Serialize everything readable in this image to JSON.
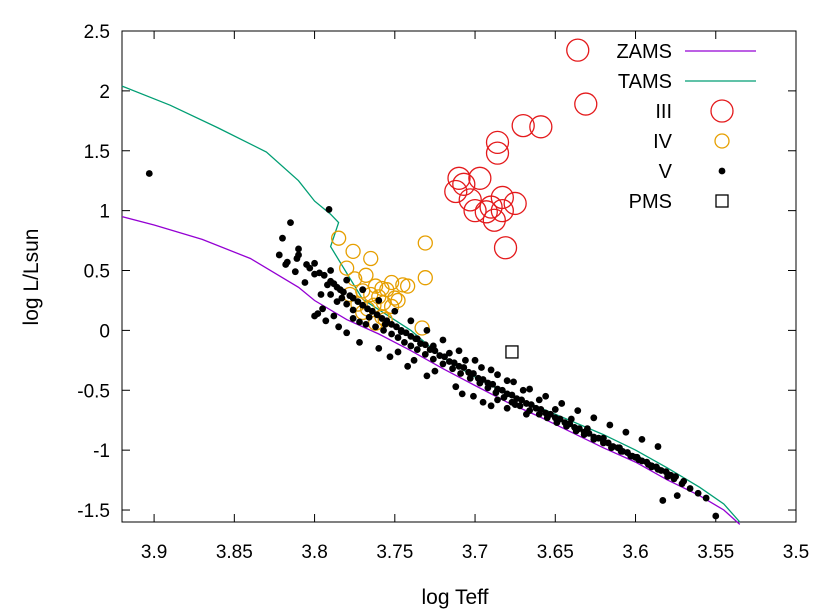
{
  "chart_data": {
    "type": "scatter",
    "xlabel": "log Teff",
    "ylabel": "log L/Lsun",
    "xlim": [
      3.92,
      3.5
    ],
    "ylim": [
      -1.6,
      2.5
    ],
    "x_reversed": true,
    "grid": false,
    "legend_position": "top-right",
    "x_ticks": [
      "3.9",
      "3.85",
      "3.8",
      "3.75",
      "3.7",
      "3.65",
      "3.6",
      "3.55",
      "3.5"
    ],
    "x_tick_values": [
      3.9,
      3.85,
      3.8,
      3.75,
      3.7,
      3.65,
      3.6,
      3.55,
      3.5
    ],
    "y_ticks": [
      "2.5",
      "2",
      "1.5",
      "1",
      "0.5",
      "0",
      "-0.5",
      "-1",
      "-1.5"
    ],
    "y_tick_values": [
      2.5,
      2,
      1.5,
      1,
      0.5,
      0,
      -0.5,
      -1,
      -1.5
    ],
    "series": [
      {
        "name": "ZAMS",
        "kind": "line",
        "color": "#9400d3",
        "x": [
          3.92,
          3.9,
          3.87,
          3.84,
          3.81,
          3.8,
          3.78,
          3.76,
          3.74,
          3.72,
          3.7,
          3.68,
          3.66,
          3.64,
          3.62,
          3.6,
          3.58,
          3.56,
          3.545,
          3.535
        ],
        "y": [
          0.95,
          0.88,
          0.76,
          0.6,
          0.36,
          0.25,
          0.09,
          -0.03,
          -0.17,
          -0.32,
          -0.46,
          -0.6,
          -0.72,
          -0.85,
          -0.98,
          -1.1,
          -1.25,
          -1.38,
          -1.5,
          -1.62
        ]
      },
      {
        "name": "TAMS",
        "kind": "line",
        "color": "#009e73",
        "x": [
          3.92,
          3.89,
          3.86,
          3.83,
          3.81,
          3.8,
          3.79,
          3.785,
          3.79,
          3.77,
          3.74,
          3.72,
          3.7,
          3.68,
          3.65,
          3.62,
          3.6,
          3.58,
          3.56,
          3.545,
          3.535
        ],
        "y": [
          2.04,
          1.88,
          1.69,
          1.49,
          1.25,
          1.08,
          0.97,
          0.9,
          0.7,
          0.26,
          0.0,
          -0.23,
          -0.39,
          -0.53,
          -0.7,
          -0.87,
          -1.0,
          -1.15,
          -1.31,
          -1.45,
          -1.6
        ]
      },
      {
        "name": "III",
        "kind": "points",
        "marker": "circle-large",
        "color": "#e41a1c",
        "x": [
          3.636,
          3.631,
          3.67,
          3.659,
          3.686,
          3.686,
          3.71,
          3.707,
          3.697,
          3.712,
          3.7,
          3.693,
          3.683,
          3.675,
          3.703,
          3.69,
          3.683,
          3.688,
          3.681
        ],
        "y": [
          2.34,
          1.89,
          1.71,
          1.7,
          1.57,
          1.48,
          1.27,
          1.22,
          1.27,
          1.16,
          1.0,
          0.99,
          1.0,
          1.06,
          1.09,
          1.03,
          1.11,
          0.92,
          0.69
        ]
      },
      {
        "name": "IV",
        "kind": "points",
        "marker": "circle",
        "color": "#e69f00",
        "x": [
          3.731,
          3.731,
          3.785,
          3.776,
          3.765,
          3.78,
          3.768,
          3.775,
          3.752,
          3.745,
          3.762,
          3.758,
          3.755,
          3.77,
          3.765,
          3.76,
          3.75,
          3.748,
          3.757,
          3.773,
          3.763,
          3.752,
          3.778,
          3.767,
          3.742,
          3.758,
          3.756,
          3.733,
          3.77,
          3.762
        ],
        "y": [
          0.73,
          0.44,
          0.77,
          0.66,
          0.6,
          0.52,
          0.46,
          0.43,
          0.4,
          0.38,
          0.37,
          0.35,
          0.34,
          0.33,
          0.3,
          0.28,
          0.27,
          0.25,
          0.23,
          0.22,
          0.21,
          0.2,
          0.3,
          0.18,
          0.37,
          0.11,
          0.09,
          0.02,
          0.15,
          0.06
        ]
      },
      {
        "name": "V",
        "kind": "points",
        "marker": "dot",
        "color": "#000000",
        "x": [
          3.903,
          3.791,
          3.815,
          3.82,
          3.818,
          3.811,
          3.805,
          3.8,
          3.792,
          3.786,
          3.79,
          3.783,
          3.78,
          3.795,
          3.798,
          3.788,
          3.776,
          3.772,
          3.768,
          3.762,
          3.757,
          3.752,
          3.748,
          3.744,
          3.74,
          3.736,
          3.731,
          3.726,
          3.72,
          3.714,
          3.709,
          3.703,
          3.697,
          3.692,
          3.687,
          3.682,
          3.677,
          3.672,
          3.666,
          3.66,
          3.655,
          3.649,
          3.643,
          3.637,
          3.632,
          3.626,
          3.62,
          3.615,
          3.609,
          3.603,
          3.598,
          3.592,
          3.586,
          3.58,
          3.576,
          3.571,
          3.566,
          3.561,
          3.556,
          3.55,
          3.81,
          3.803,
          3.797,
          3.79,
          3.784,
          3.778,
          3.773,
          3.767,
          3.761,
          3.755,
          3.749,
          3.743,
          3.737,
          3.731,
          3.725,
          3.719,
          3.713,
          3.707,
          3.701,
          3.695,
          3.689,
          3.683,
          3.677,
          3.671,
          3.665,
          3.659,
          3.653,
          3.647,
          3.641,
          3.635,
          3.629,
          3.623,
          3.617,
          3.611,
          3.605,
          3.599,
          3.593,
          3.587,
          3.581,
          3.575,
          3.57,
          3.79,
          3.78,
          3.77,
          3.76,
          3.75,
          3.74,
          3.73,
          3.72,
          3.71,
          3.7,
          3.69,
          3.68,
          3.67,
          3.66,
          3.65,
          3.64,
          3.63,
          3.62,
          3.61,
          3.6,
          3.59,
          3.58,
          3.8,
          3.794,
          3.788,
          3.782,
          3.776,
          3.77,
          3.764,
          3.758,
          3.752,
          3.746,
          3.74,
          3.734,
          3.728,
          3.722,
          3.716,
          3.71,
          3.704,
          3.698,
          3.692,
          3.686,
          3.68,
          3.674,
          3.668,
          3.662,
          3.656,
          3.65,
          3.644,
          3.638,
          3.632,
          3.626,
          3.62,
          3.614,
          3.608,
          3.602,
          3.596,
          3.59,
          3.584,
          3.578,
          3.806,
          3.796,
          3.786,
          3.776,
          3.766,
          3.756,
          3.746,
          3.736,
          3.726,
          3.716,
          3.706,
          3.696,
          3.686,
          3.676,
          3.666,
          3.656,
          3.646,
          3.636,
          3.626,
          3.616,
          3.606,
          3.596,
          3.586,
          3.583,
          3.574,
          3.701,
          3.695,
          3.69,
          3.686,
          3.712,
          3.708,
          3.68,
          3.675,
          3.668,
          3.725,
          3.73,
          3.738,
          3.742,
          3.748,
          3.753,
          3.76,
          3.772,
          3.78,
          3.785,
          3.793,
          3.8,
          3.812,
          3.817,
          3.822,
          3.81
        ],
        "y": [
          1.31,
          1.01,
          0.9,
          0.77,
          0.55,
          0.6,
          0.55,
          0.47,
          0.38,
          0.36,
          0.3,
          0.27,
          0.22,
          0.18,
          0.14,
          0.12,
          0.1,
          0.07,
          0.05,
          0.03,
          0.0,
          -0.03,
          -0.06,
          -0.1,
          -0.13,
          -0.16,
          -0.2,
          -0.24,
          -0.28,
          -0.32,
          -0.36,
          -0.4,
          -0.44,
          -0.48,
          -0.52,
          -0.56,
          -0.6,
          -0.63,
          -0.67,
          -0.7,
          -0.73,
          -0.77,
          -0.8,
          -0.84,
          -0.87,
          -0.91,
          -0.94,
          -0.98,
          -1.01,
          -1.05,
          -1.08,
          -1.12,
          -1.16,
          -1.2,
          -1.24,
          -1.28,
          -1.32,
          -1.36,
          -1.4,
          -1.55,
          0.63,
          0.52,
          0.48,
          0.41,
          0.34,
          0.29,
          0.24,
          0.18,
          0.13,
          0.08,
          0.03,
          -0.02,
          -0.07,
          -0.12,
          -0.17,
          -0.22,
          -0.27,
          -0.31,
          -0.36,
          -0.41,
          -0.45,
          -0.5,
          -0.54,
          -0.58,
          -0.62,
          -0.66,
          -0.7,
          -0.74,
          -0.78,
          -0.82,
          -0.86,
          -0.9,
          -0.94,
          -0.98,
          -1.02,
          -1.06,
          -1.1,
          -1.14,
          -1.18,
          -1.22,
          -1.26,
          0.5,
          0.42,
          0.34,
          0.25,
          0.16,
          0.08,
          0.0,
          -0.08,
          -0.17,
          -0.25,
          -0.33,
          -0.42,
          -0.5,
          -0.58,
          -0.66,
          -0.74,
          -0.82,
          -0.9,
          -0.98,
          -1.06,
          -1.14,
          -1.22,
          0.56,
          0.46,
          0.39,
          0.32,
          0.27,
          0.21,
          0.16,
          0.1,
          0.05,
          0.0,
          -0.05,
          -0.11,
          -0.16,
          -0.21,
          -0.26,
          -0.3,
          -0.35,
          -0.4,
          -0.44,
          -0.49,
          -0.53,
          -0.57,
          -0.61,
          -0.65,
          -0.69,
          -0.73,
          -0.77,
          -0.81,
          -0.85,
          -0.89,
          -0.93,
          -0.97,
          -1.01,
          -1.05,
          -1.09,
          -1.13,
          -1.17,
          -1.21,
          0.4,
          0.3,
          0.24,
          0.17,
          0.11,
          0.05,
          -0.01,
          -0.07,
          -0.13,
          -0.19,
          -0.25,
          -0.31,
          -0.37,
          -0.43,
          -0.49,
          -0.55,
          -0.61,
          -0.67,
          -0.73,
          -0.79,
          -0.85,
          -0.91,
          -0.97,
          -1.42,
          -1.38,
          -0.55,
          -0.6,
          -0.63,
          -0.58,
          -0.47,
          -0.53,
          -0.65,
          -0.62,
          -0.7,
          -0.34,
          -0.38,
          -0.25,
          -0.3,
          -0.18,
          -0.22,
          -0.15,
          -0.1,
          -0.02,
          0.03,
          0.08,
          0.12,
          0.49,
          0.57,
          0.63,
          0.68
        ]
      },
      {
        "name": "PMS",
        "kind": "points",
        "marker": "square",
        "color": "#000000",
        "x": [
          3.677
        ],
        "y": [
          -0.18
        ]
      }
    ]
  }
}
